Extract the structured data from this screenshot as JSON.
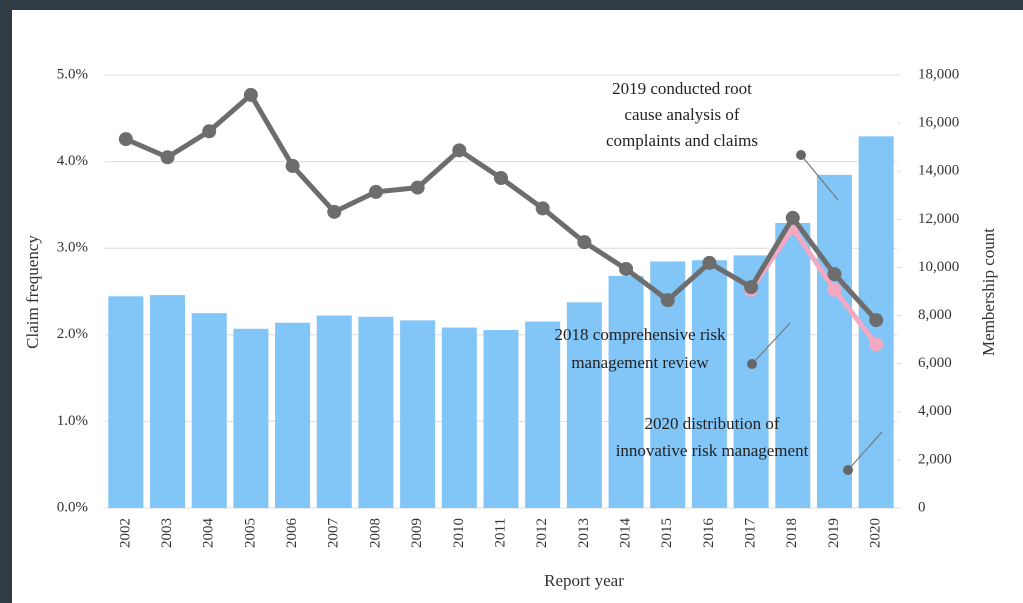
{
  "chart_data": {
    "type": "bar-line",
    "x_label": "Report year",
    "y_label": "Claim frequency",
    "y2_label": "Membership count",
    "categories": [
      "2002",
      "2003",
      "2004",
      "2005",
      "2006",
      "2007",
      "2008",
      "2009",
      "2010",
      "2011",
      "2012",
      "2013",
      "2014",
      "2015",
      "2016",
      "2017",
      "2018",
      "2019",
      "2020"
    ],
    "series": [
      {
        "type": "bar",
        "axis": "y2",
        "color": "#82c5f7",
        "values": [
          8800,
          8850,
          8100,
          7450,
          7700,
          8000,
          7950,
          7800,
          7500,
          7400,
          7750,
          8550,
          9650,
          10250,
          10300,
          10500,
          11850,
          13850,
          15450
        ]
      },
      {
        "type": "line",
        "axis": "y",
        "color": "#f4a9c2",
        "values": [
          null,
          null,
          null,
          null,
          null,
          null,
          null,
          null,
          null,
          null,
          null,
          null,
          null,
          null,
          null,
          2.52,
          3.23,
          2.52,
          1.89
        ]
      },
      {
        "type": "line",
        "axis": "y",
        "color": "#6d6d6d",
        "values": [
          4.26,
          4.05,
          4.35,
          4.77,
          3.95,
          3.42,
          3.65,
          3.7,
          4.13,
          3.81,
          3.46,
          3.07,
          2.76,
          2.4,
          2.83,
          2.55,
          3.35,
          2.7,
          2.17
        ]
      }
    ],
    "ylim": [
      0,
      5
    ],
    "yticks": [
      {
        "value": 0,
        "label": "0.0%"
      },
      {
        "value": 1,
        "label": "1.0%"
      },
      {
        "value": 2,
        "label": "2.0%"
      },
      {
        "value": 3,
        "label": "3.0%"
      },
      {
        "value": 4,
        "label": "4.0%"
      },
      {
        "value": 5,
        "label": "5.0%"
      }
    ],
    "y2lim": [
      0,
      18000
    ],
    "y2ticks": [
      0,
      {
        "value": 2000,
        "label": "2,000"
      },
      {
        "value": 4000,
        "label": "4,000"
      },
      {
        "value": 6000,
        "label": "6,000"
      },
      {
        "value": 8000,
        "label": "8,000"
      },
      {
        "value": 10000,
        "label": "10,000"
      },
      {
        "value": 12000,
        "label": "12,000"
      },
      {
        "value": 14000,
        "label": "14,000"
      },
      {
        "value": 16000,
        "label": "16,000"
      },
      {
        "value": 18000,
        "label": "18,000"
      }
    ],
    "grid": true,
    "annotations": [
      {
        "lines": [
          "2019 conducted root",
          "cause analysis of",
          "complaints and claims"
        ]
      },
      {
        "lines": [
          "2018 comprehensive risk",
          "management review"
        ]
      },
      {
        "lines": [
          "2020 distribution of",
          "innovative risk management"
        ]
      }
    ]
  }
}
